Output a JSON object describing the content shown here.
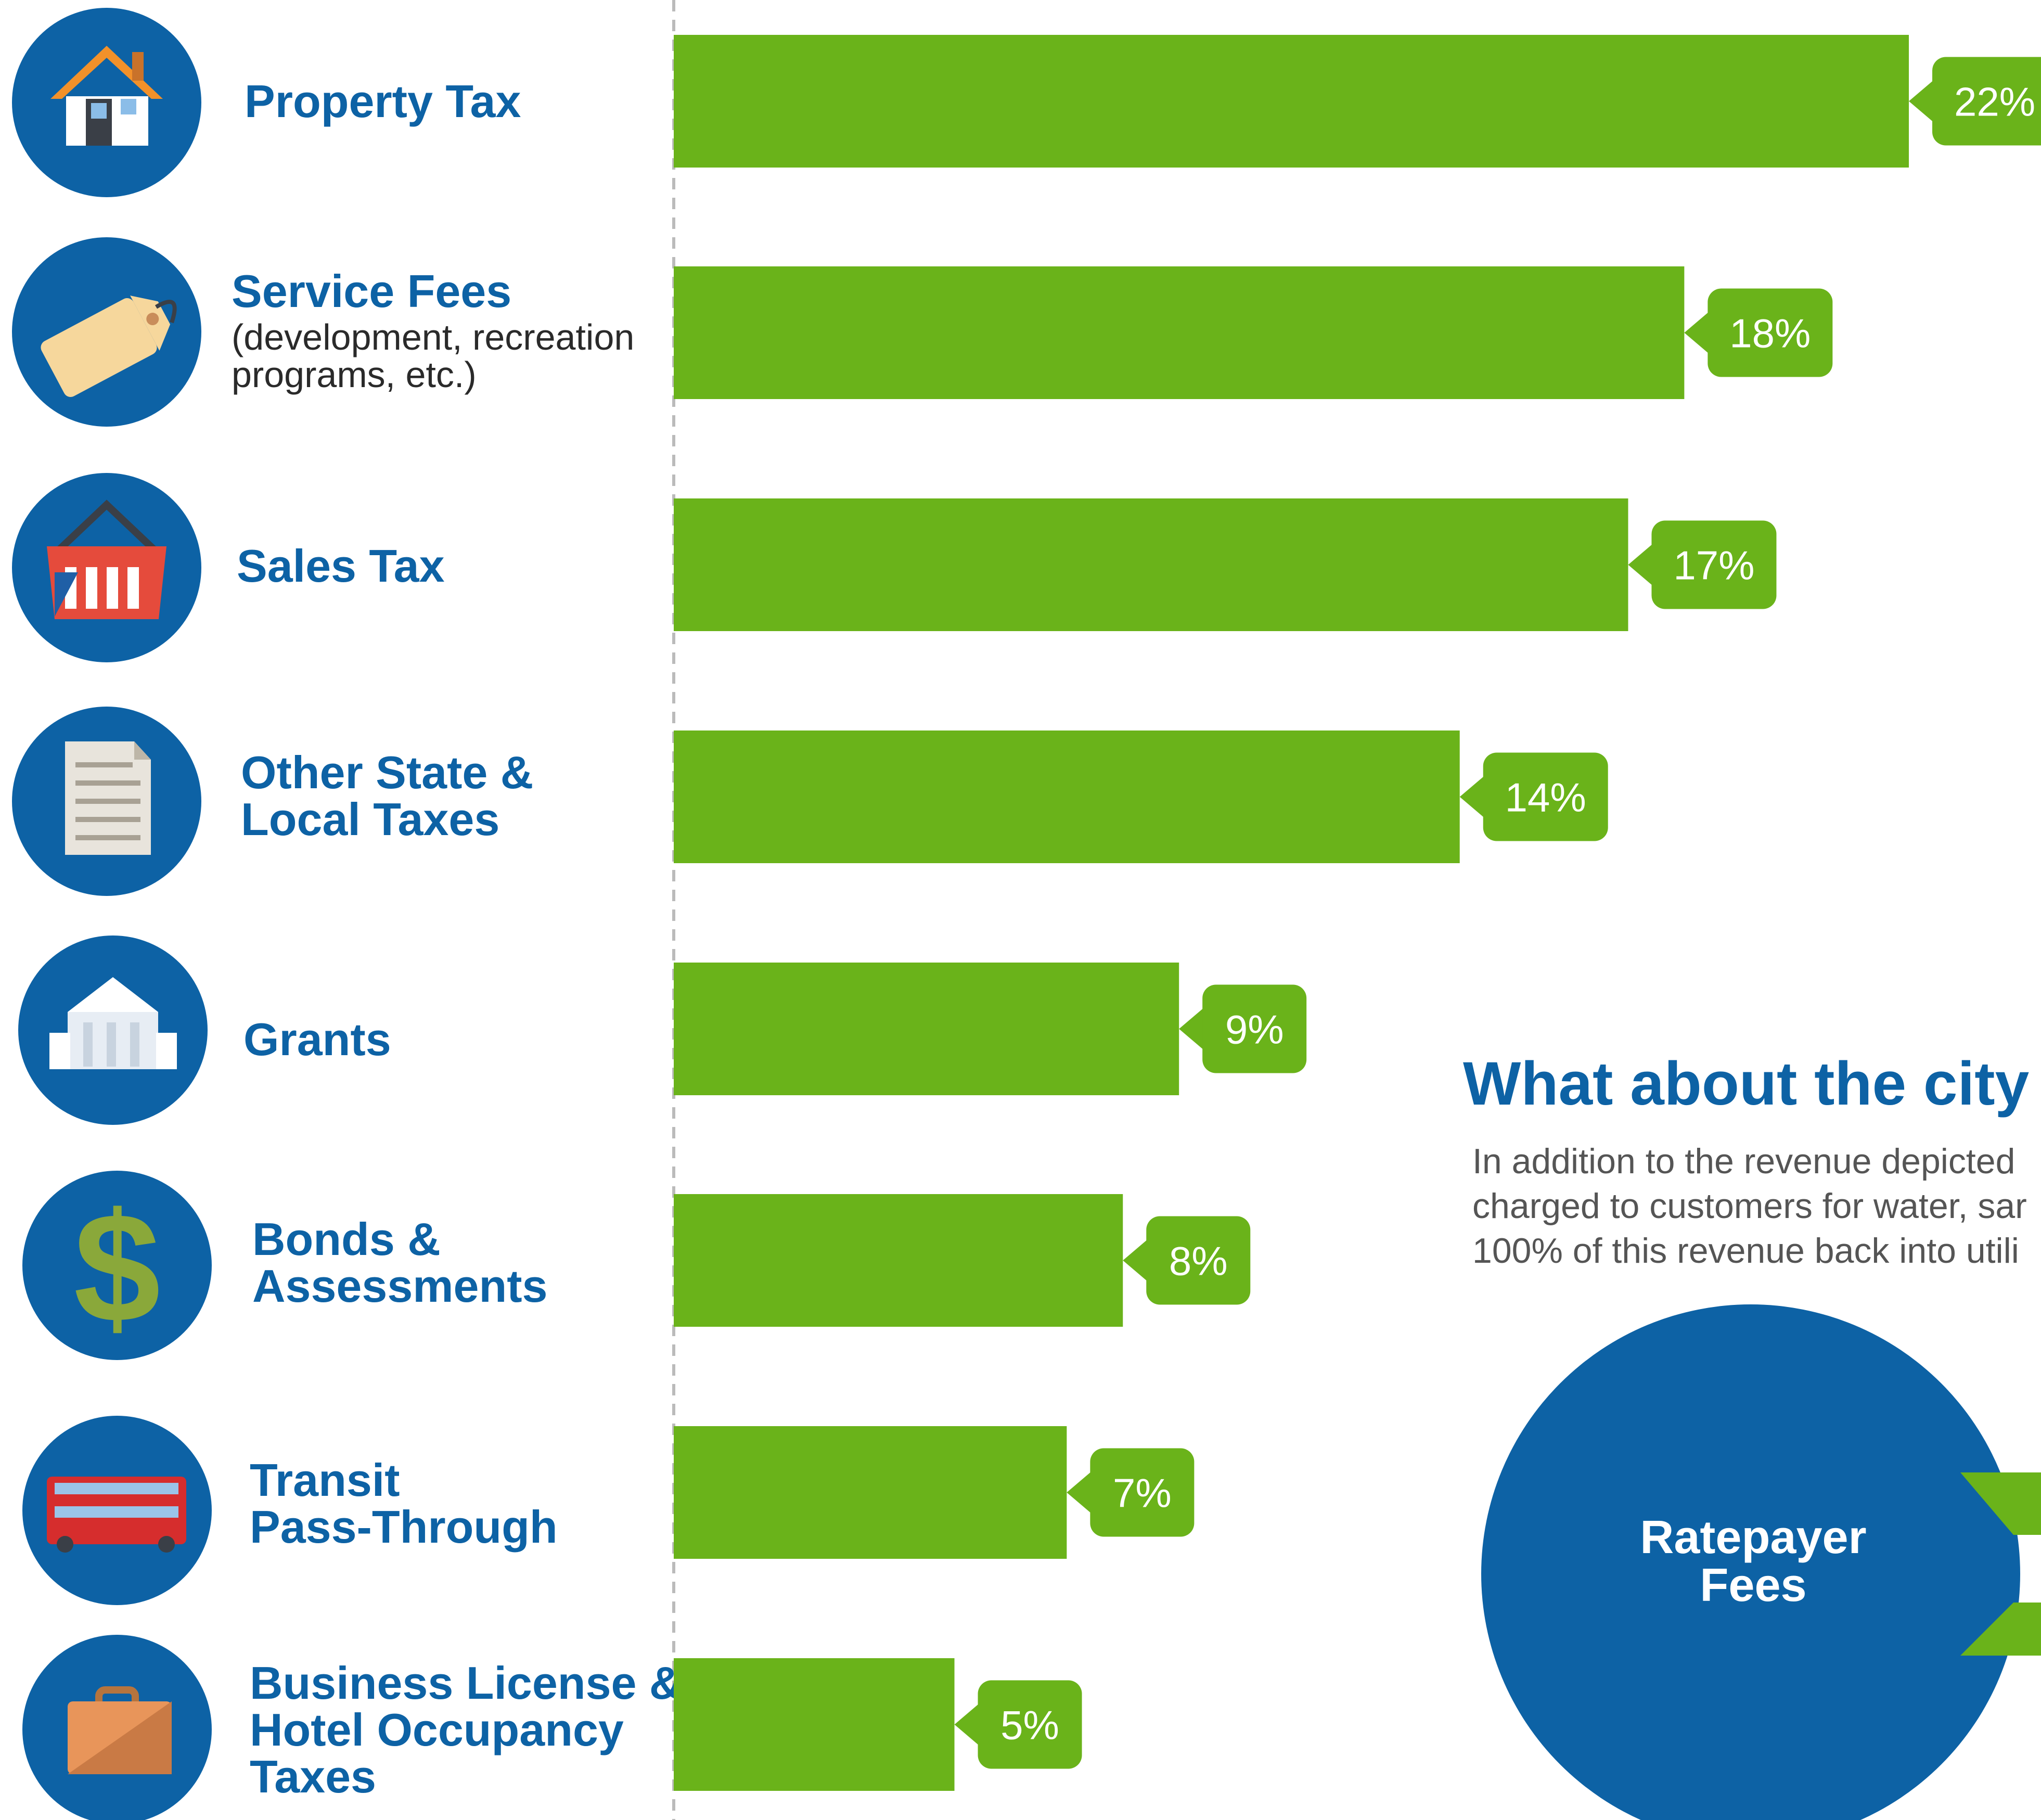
{
  "colors": {
    "bar": "#6ab31a",
    "icon_bg": "#0d62a5",
    "title_text": "#0d62a5",
    "body_text": "#555555",
    "divider": "#bbbbbb"
  },
  "chart_data": {
    "type": "bar",
    "orientation": "horizontal",
    "categories": [
      "Property Tax",
      "Service Fees",
      "Sales Tax",
      "Other State & Local Taxes",
      "Grants",
      "Bonds & Assessments",
      "Transit Pass-Through",
      "Business License & Hotel Occupancy Taxes"
    ],
    "values": [
      22,
      18,
      17,
      14,
      9,
      8,
      7,
      5
    ],
    "value_labels": [
      "22%",
      "18%",
      "17%",
      "14%",
      "9%",
      "8%",
      "7%",
      "5%"
    ],
    "unit": "%"
  },
  "categories": [
    {
      "title_lines": [
        "Property Tax"
      ],
      "sub_lines": [],
      "icon": "house-icon"
    },
    {
      "title_lines": [
        "Service Fees"
      ],
      "sub_lines": [
        "(development, recreation",
        "programs, etc.)"
      ],
      "icon": "price-tag-icon"
    },
    {
      "title_lines": [
        "Sales Tax"
      ],
      "sub_lines": [],
      "icon": "shopping-basket-icon"
    },
    {
      "title_lines": [
        "Other State &",
        "Local Taxes"
      ],
      "sub_lines": [],
      "icon": "document-icon"
    },
    {
      "title_lines": [
        "Grants"
      ],
      "sub_lines": [],
      "icon": "government-building-icon"
    },
    {
      "title_lines": [
        "Bonds &",
        "Assessments"
      ],
      "sub_lines": [],
      "icon": "dollar-sign-icon"
    },
    {
      "title_lines": [
        "Transit",
        "Pass-Through"
      ],
      "sub_lines": [],
      "icon": "double-decker-bus-icon"
    },
    {
      "title_lines": [
        "Business License &",
        "Hotel Occupancy",
        "Taxes"
      ],
      "sub_lines": [],
      "icon": "briefcase-icon"
    }
  ],
  "utility_section": {
    "heading": "What about the city u",
    "paragraph_lines": [
      "In addition to the revenue depicted",
      "charged to customers for water, sar",
      "100% of this revenue back into utili"
    ],
    "circle_label_lines": [
      "Ratepayer",
      "Fees"
    ]
  }
}
